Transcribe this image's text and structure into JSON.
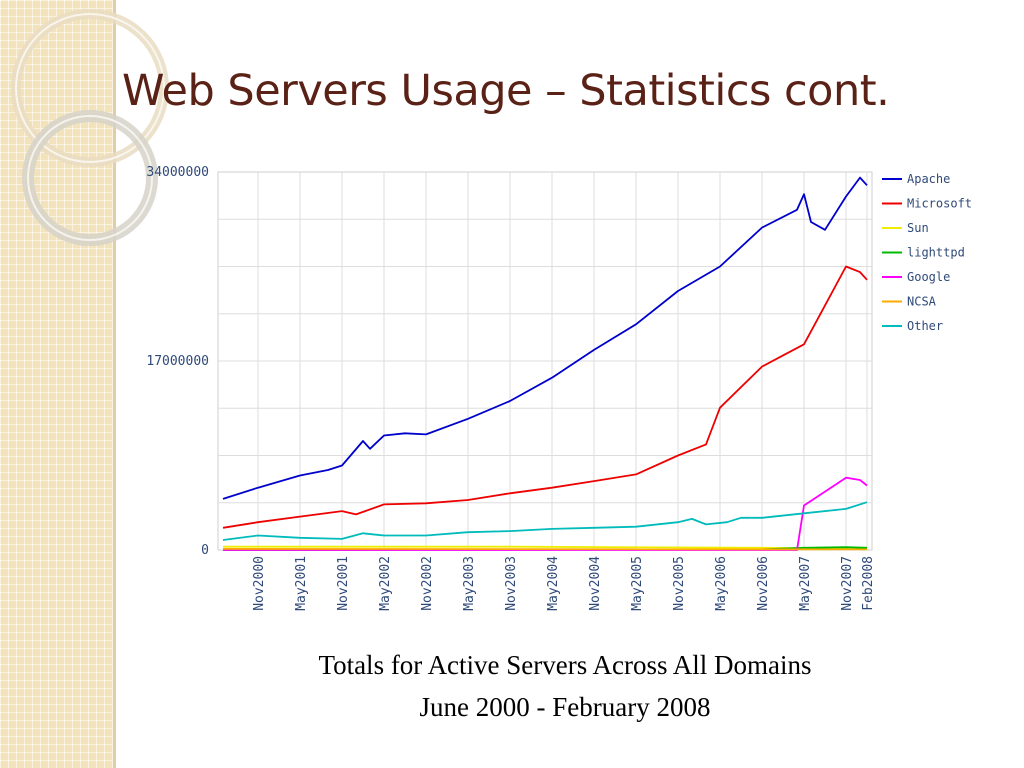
{
  "slide": {
    "title": "Web Servers Usage – Statistics cont.",
    "caption_line1": "Totals for Active Servers Across All Domains",
    "caption_line2": "June 2000 - February 2008"
  },
  "theme": {
    "title_color": "#5a2117",
    "sidebar_color": "#f3e3bd"
  },
  "chart_data": {
    "type": "line",
    "ylim": [
      0,
      34000000
    ],
    "y_ticks": [
      "34000000",
      "17000000",
      "0"
    ],
    "x_tick_labels": [
      "Nov2000",
      "May2001",
      "Nov2001",
      "May2002",
      "Nov2002",
      "May2003",
      "Nov2003",
      "May2004",
      "Nov2004",
      "May2005",
      "Nov2005",
      "May2006",
      "Nov2006",
      "May2007",
      "Nov2007",
      "Feb2008"
    ],
    "x_range": [
      "Jun2000",
      "Feb2008"
    ],
    "grid": true,
    "legend_position": "right",
    "series": [
      {
        "name": "Apache",
        "color": "#0000cc",
        "points": [
          [
            "Jun2000",
            4600000
          ],
          [
            "Nov2000",
            5600000
          ],
          [
            "May2001",
            6700000
          ],
          [
            "Sep2001",
            7200000
          ],
          [
            "Nov2001",
            7600000
          ],
          [
            "Feb2002",
            9800000
          ],
          [
            "Mar2002",
            9100000
          ],
          [
            "May2002",
            10300000
          ],
          [
            "Aug2002",
            10500000
          ],
          [
            "Nov2002",
            10400000
          ],
          [
            "May2003",
            11800000
          ],
          [
            "Nov2003",
            13400000
          ],
          [
            "May2004",
            15500000
          ],
          [
            "Nov2004",
            18000000
          ],
          [
            "May2005",
            20300000
          ],
          [
            "Nov2005",
            23300000
          ],
          [
            "May2006",
            25500000
          ],
          [
            "Nov2006",
            29000000
          ],
          [
            "Apr2007",
            30600000
          ],
          [
            "May2007",
            32000000
          ],
          [
            "Jun2007",
            29500000
          ],
          [
            "Aug2007",
            28800000
          ],
          [
            "Nov2007",
            31800000
          ],
          [
            "Jan2008",
            33500000
          ],
          [
            "Feb2008",
            32800000
          ]
        ]
      },
      {
        "name": "Microsoft",
        "color": "#ee0000",
        "points": [
          [
            "Jun2000",
            2000000
          ],
          [
            "Nov2000",
            2500000
          ],
          [
            "May2001",
            3000000
          ],
          [
            "Nov2001",
            3500000
          ],
          [
            "Jan2002",
            3200000
          ],
          [
            "May2002",
            4100000
          ],
          [
            "Nov2002",
            4200000
          ],
          [
            "May2003",
            4500000
          ],
          [
            "Nov2003",
            5100000
          ],
          [
            "May2004",
            5600000
          ],
          [
            "Nov2004",
            6200000
          ],
          [
            "May2005",
            6800000
          ],
          [
            "Nov2005",
            8500000
          ],
          [
            "Mar2006",
            9500000
          ],
          [
            "May2006",
            12800000
          ],
          [
            "Nov2006",
            16500000
          ],
          [
            "Feb2007",
            17500000
          ],
          [
            "May2007",
            18500000
          ],
          [
            "Aug2007",
            22000000
          ],
          [
            "Nov2007",
            25500000
          ],
          [
            "Jan2008",
            25000000
          ],
          [
            "Feb2008",
            24300000
          ]
        ]
      },
      {
        "name": "Sun",
        "color": "#eeee00",
        "points": [
          [
            "Jun2000",
            300000
          ],
          [
            "Nov2003",
            300000
          ],
          [
            "Nov2006",
            200000
          ],
          [
            "Feb2008",
            100000
          ]
        ]
      },
      {
        "name": "lighttpd",
        "color": "#00bb00",
        "points": [
          [
            "Jun2000",
            0
          ],
          [
            "Nov2006",
            50000
          ],
          [
            "May2007",
            200000
          ],
          [
            "Nov2007",
            250000
          ],
          [
            "Feb2008",
            200000
          ]
        ]
      },
      {
        "name": "Google",
        "color": "#ff00ff",
        "points": [
          [
            "Jun2000",
            0
          ],
          [
            "Apr2007",
            0
          ],
          [
            "May2007",
            4000000
          ],
          [
            "Nov2007",
            6500000
          ],
          [
            "Jan2008",
            6300000
          ],
          [
            "Feb2008",
            5800000
          ]
        ]
      },
      {
        "name": "NCSA",
        "color": "#ffaa00",
        "points": [
          [
            "Jun2000",
            100000
          ],
          [
            "Feb2008",
            50000
          ]
        ]
      },
      {
        "name": "Other",
        "color": "#00bbbb",
        "points": [
          [
            "Jun2000",
            900000
          ],
          [
            "Nov2000",
            1300000
          ],
          [
            "May2001",
            1100000
          ],
          [
            "Nov2001",
            1000000
          ],
          [
            "Feb2002",
            1500000
          ],
          [
            "May2002",
            1300000
          ],
          [
            "Nov2002",
            1300000
          ],
          [
            "May2003",
            1600000
          ],
          [
            "Nov2003",
            1700000
          ],
          [
            "May2004",
            1900000
          ],
          [
            "Nov2004",
            2000000
          ],
          [
            "May2005",
            2100000
          ],
          [
            "Nov2005",
            2500000
          ],
          [
            "Jan2006",
            2800000
          ],
          [
            "Mar2006",
            2300000
          ],
          [
            "Jun2006",
            2500000
          ],
          [
            "Aug2006",
            2900000
          ],
          [
            "Nov2006",
            2900000
          ],
          [
            "May2007",
            3300000
          ],
          [
            "Nov2007",
            3700000
          ],
          [
            "Feb2008",
            4300000
          ]
        ]
      }
    ]
  }
}
